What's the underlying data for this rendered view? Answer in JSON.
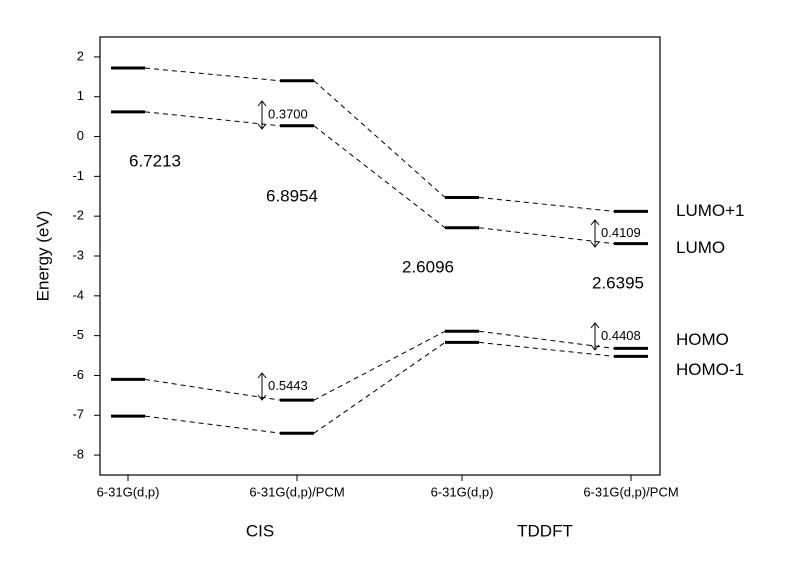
{
  "chart_data": {
    "type": "energy-levels",
    "y_label": "Energy (eV)",
    "categories": [
      "6-31G(d,p)",
      "6-31G(d,p)/PCM",
      "6-31G(d,p)",
      "6-31G(d,p)/PCM"
    ],
    "groups": [
      "CIS",
      "TDDFT"
    ],
    "series": [
      {
        "name": "LUMO+1",
        "color": "#000000",
        "values": [
          1.72,
          1.4,
          -1.53,
          -1.88
        ]
      },
      {
        "name": "LUMO",
        "color": "#000000",
        "values": [
          0.62,
          0.27,
          -2.29,
          -2.69
        ]
      },
      {
        "name": "HOMO",
        "color": "#000000",
        "values": [
          -6.1,
          -6.62,
          -4.89,
          -5.32
        ]
      },
      {
        "name": "HOMO-1",
        "color": "#000000",
        "values": [
          -7.02,
          -7.45,
          -5.17,
          -5.52
        ]
      }
    ],
    "gap_labels": [
      "6.7213",
      "6.8954",
      "2.6096",
      "2.6395"
    ],
    "split_labels": [
      "0.3700",
      "0.5443",
      "0.4109",
      "0.4408"
    ],
    "ylim": [
      -8.5,
      2.5
    ],
    "yticks": [
      -8,
      -7,
      -6,
      -5,
      -4,
      -3,
      -2,
      -1,
      0,
      1,
      2
    ]
  }
}
